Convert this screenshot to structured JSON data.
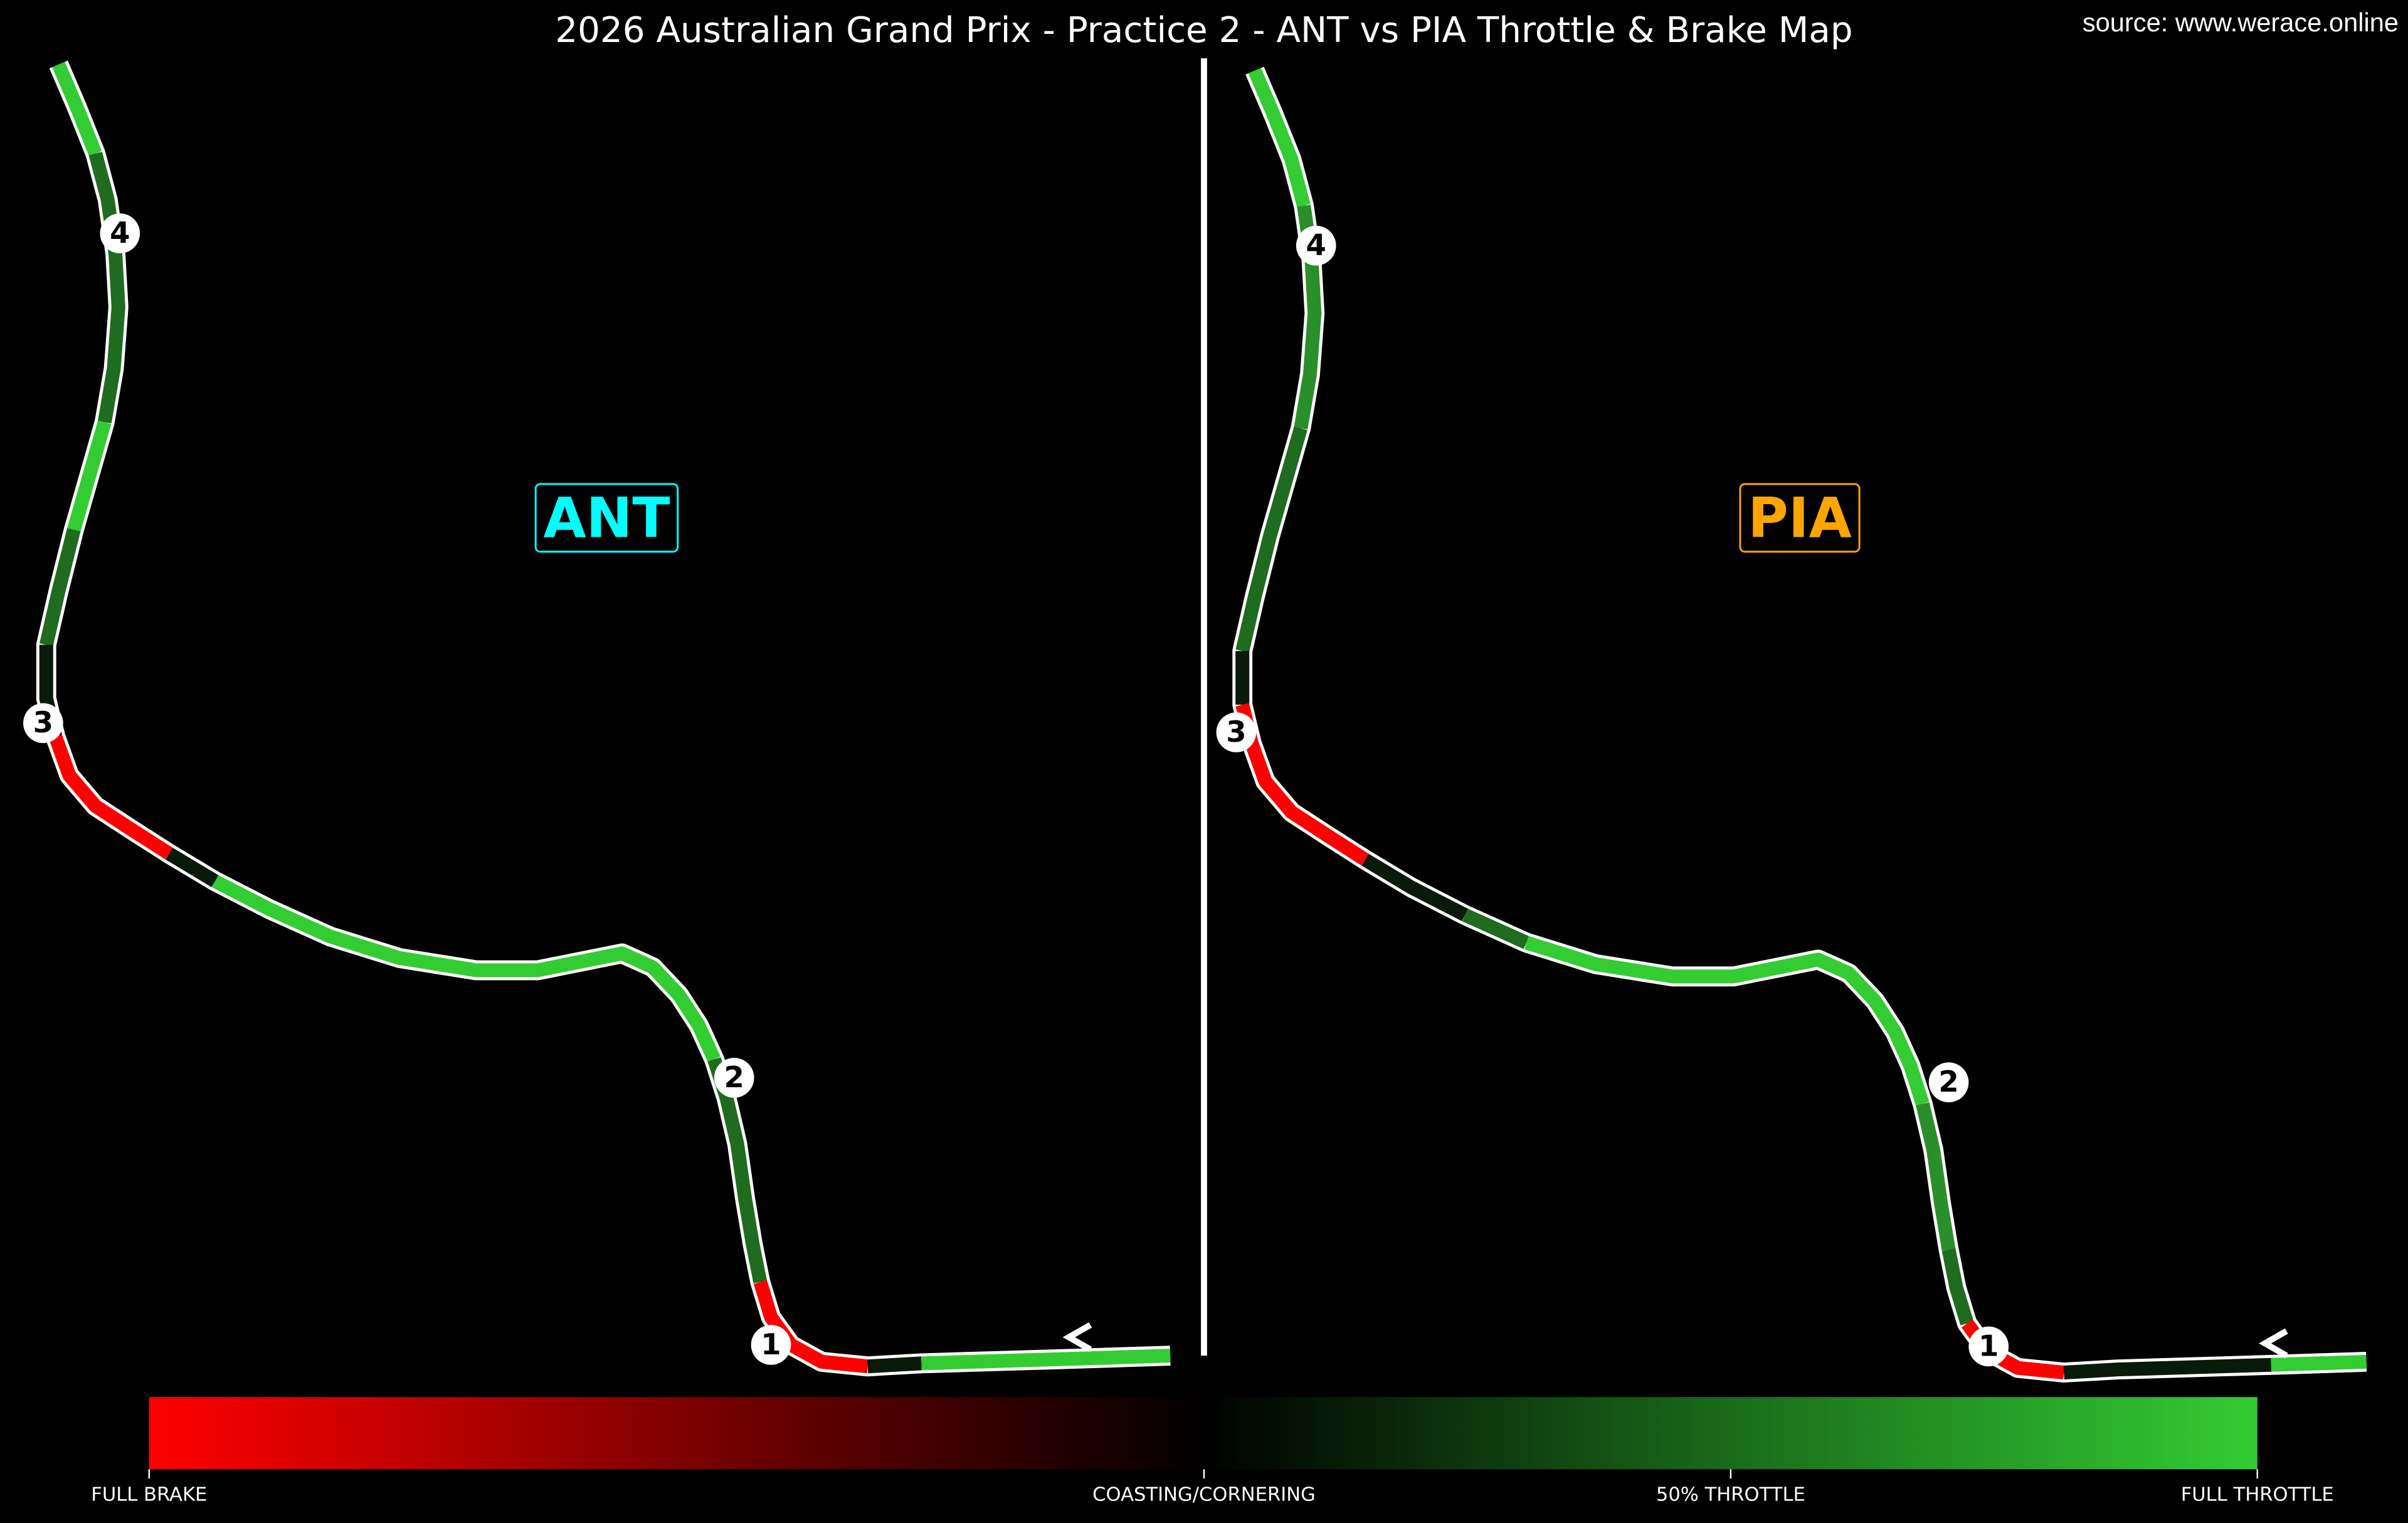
{
  "title": "2026 Australian Grand Prix - Practice 2 - ANT vs PIA Throttle & Brake Map",
  "source": "source: www.werace.online",
  "panels": [
    {
      "driver": "ANT",
      "color": "#00ffff",
      "corners": [
        "1",
        "2",
        "3",
        "4"
      ]
    },
    {
      "driver": "PIA",
      "color": "#ffa500",
      "corners": [
        "1",
        "2",
        "3",
        "4"
      ]
    }
  ],
  "colorbar": {
    "labels": [
      "FULL BRAKE",
      "COASTING/CORNERING",
      "50% THROTTLE",
      "FULL THROTTLE"
    ]
  }
}
